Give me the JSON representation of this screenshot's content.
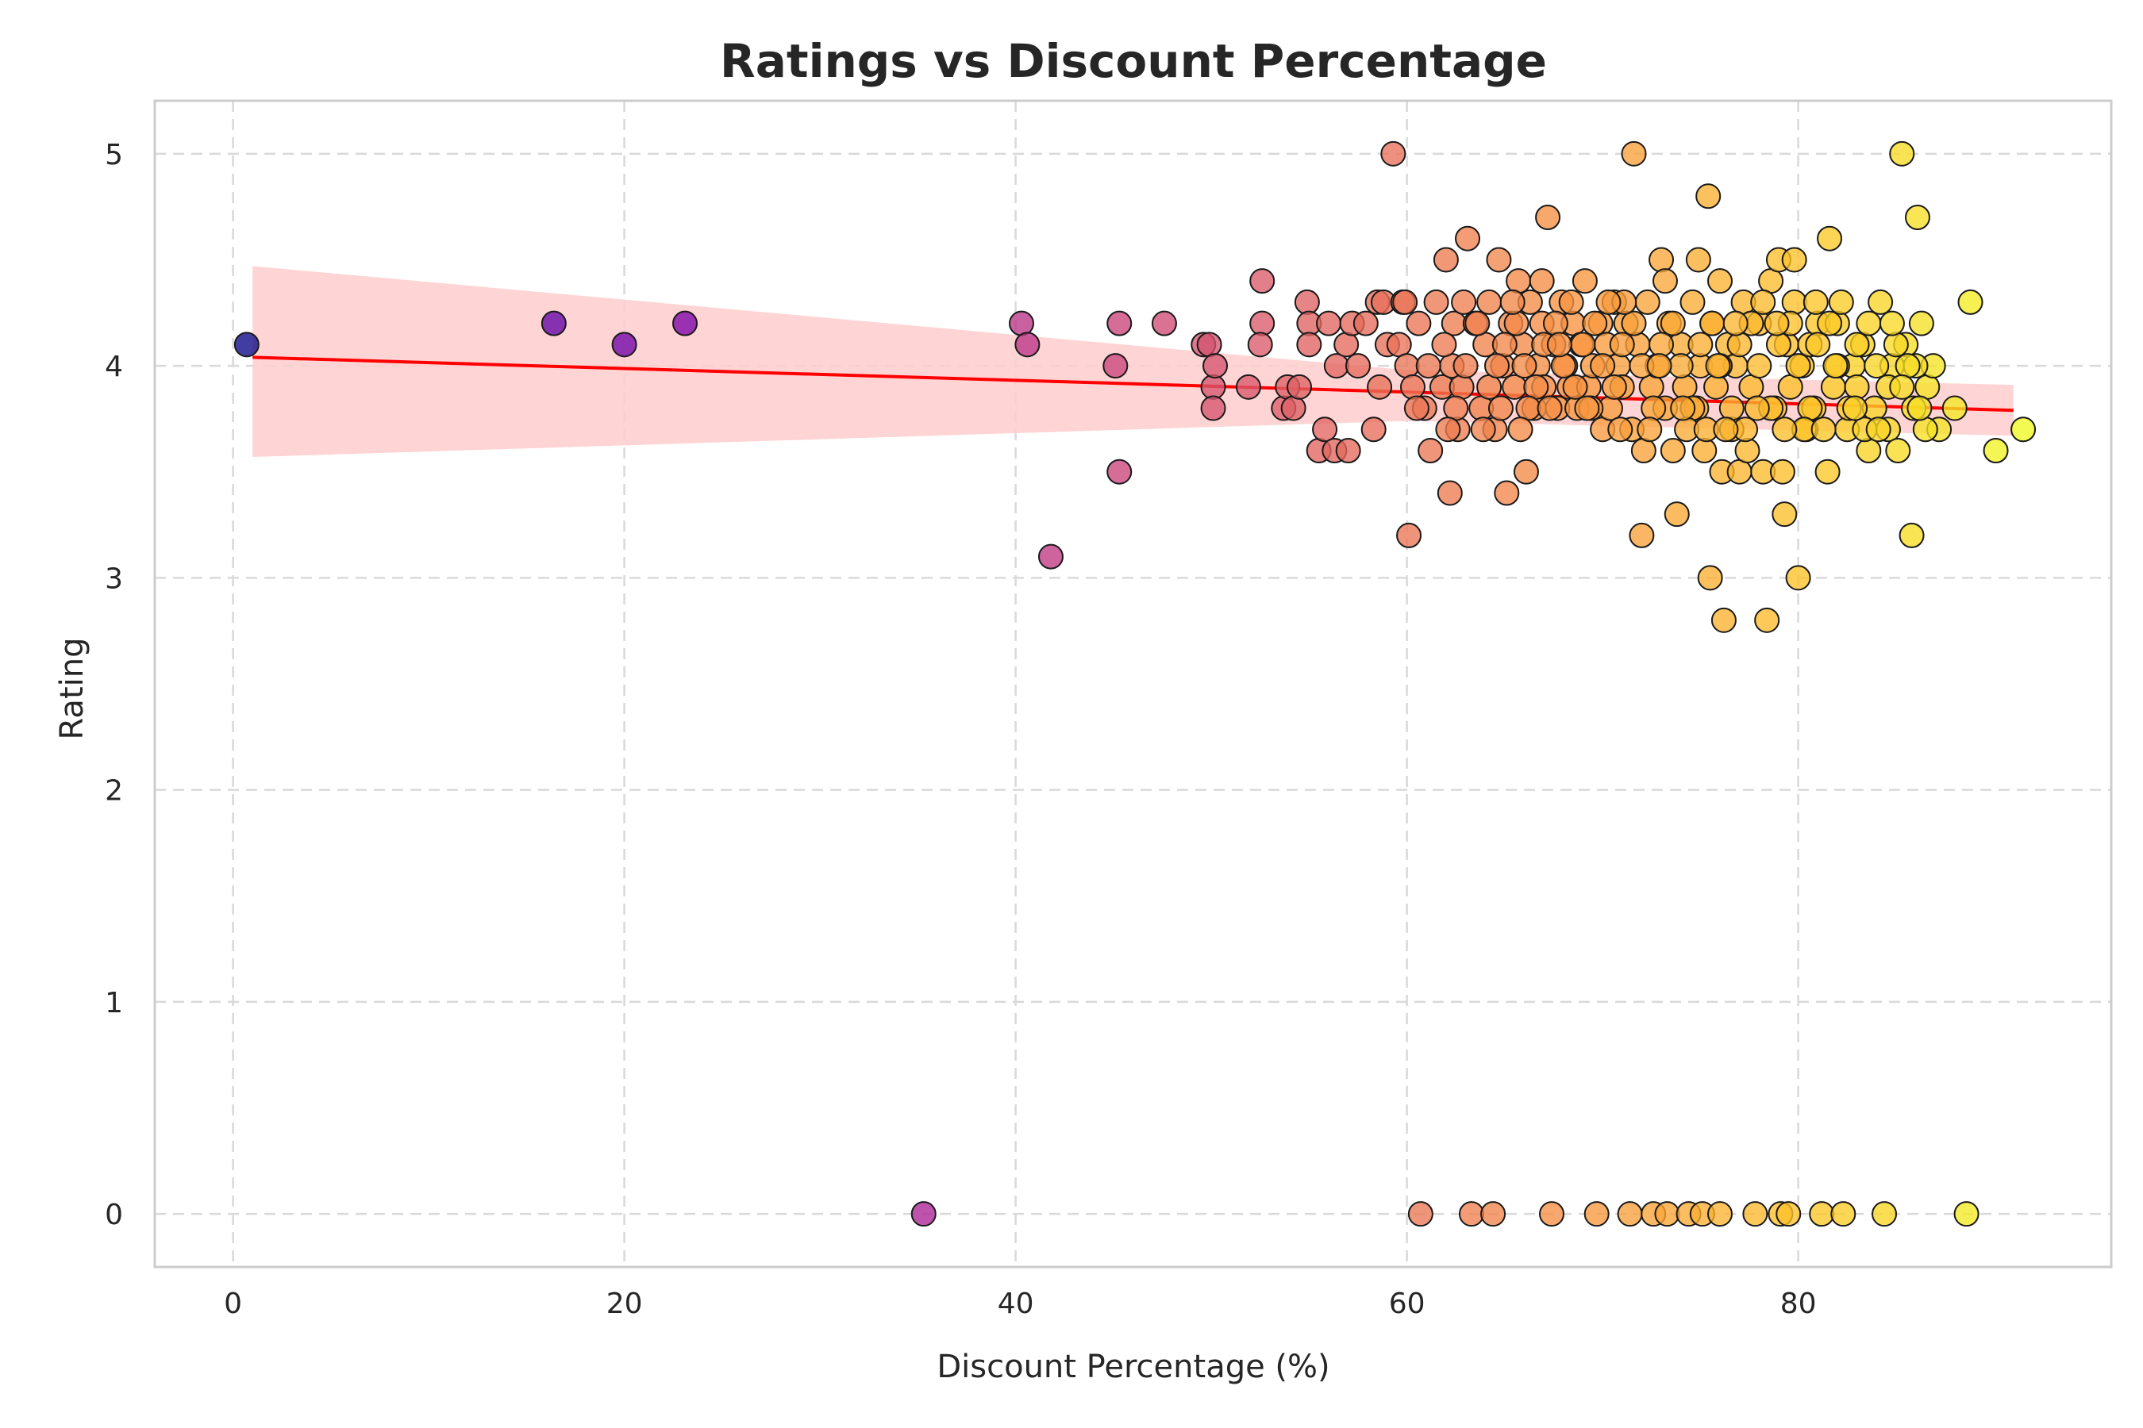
{
  "chart_data": {
    "type": "scatter",
    "title": "Ratings vs Discount Percentage",
    "xlabel": "Discount Percentage (%)",
    "ylabel": "Rating",
    "xlim": [
      -4,
      96
    ],
    "ylim": [
      -0.25,
      5.25
    ],
    "xticks": [
      0,
      20,
      40,
      60,
      80
    ],
    "yticks": [
      0,
      1,
      2,
      3,
      4,
      5
    ],
    "grid": true,
    "colormap": "plasma",
    "color_by": "x",
    "regression": {
      "color": "#ff0000",
      "ci_color": "#ffcccc",
      "line": [
        [
          1,
          4.04
        ],
        [
          91,
          3.79
        ]
      ],
      "ci_upper": [
        [
          1,
          4.47
        ],
        [
          60,
          3.98
        ],
        [
          91,
          3.91
        ]
      ],
      "ci_lower": [
        [
          1,
          3.57
        ],
        [
          60,
          3.74
        ],
        [
          91,
          3.67
        ]
      ]
    },
    "points": [
      [
        0.7,
        4.1
      ],
      [
        16.4,
        4.2
      ],
      [
        20,
        4.1
      ],
      [
        23.1,
        4.2
      ],
      [
        35.3,
        0
      ],
      [
        40.3,
        4.2
      ],
      [
        40.6,
        4.1
      ],
      [
        41.8,
        3.1
      ],
      [
        45.1,
        4.0
      ],
      [
        45.3,
        3.5
      ],
      [
        45.3,
        4.2
      ],
      [
        47.6,
        4.2
      ],
      [
        49.6,
        4.1
      ],
      [
        49.9,
        4.1
      ],
      [
        50.1,
        3.9
      ],
      [
        50.2,
        4.0
      ],
      [
        50.1,
        3.8
      ],
      [
        51.9,
        3.9
      ],
      [
        52.6,
        4.4
      ],
      [
        52.6,
        4.2
      ],
      [
        52.5,
        4.1
      ],
      [
        53.7,
        3.8
      ],
      [
        53.9,
        3.9
      ],
      [
        54.2,
        3.8
      ],
      [
        54.5,
        3.9
      ],
      [
        54.9,
        4.3
      ],
      [
        55.0,
        4.2
      ],
      [
        55.0,
        4.1
      ],
      [
        55.5,
        3.6
      ],
      [
        55.8,
        3.7
      ],
      [
        56.0,
        4.2
      ],
      [
        56.3,
        3.6
      ],
      [
        56.4,
        4.0
      ],
      [
        56.9,
        4.1
      ],
      [
        57.0,
        3.6
      ],
      [
        57.2,
        4.2
      ],
      [
        57.5,
        4.0
      ],
      [
        57.9,
        4.2
      ],
      [
        58.3,
        3.7
      ],
      [
        58.5,
        4.3
      ],
      [
        58.6,
        3.9
      ],
      [
        58.8,
        4.3
      ],
      [
        59.0,
        4.1
      ],
      [
        59.3,
        5.0
      ],
      [
        59.6,
        4.1
      ],
      [
        59.8,
        4.3
      ],
      [
        60.0,
        4.0
      ],
      [
        60.1,
        3.2
      ],
      [
        60.3,
        3.9
      ],
      [
        60.6,
        4.2
      ],
      [
        60.7,
        0
      ],
      [
        60.9,
        3.8
      ],
      [
        61.2,
        3.6
      ],
      [
        61.5,
        4.3
      ],
      [
        61.8,
        3.9
      ],
      [
        62.0,
        4.5
      ],
      [
        62.2,
        3.4
      ],
      [
        62.3,
        4.0
      ],
      [
        62.4,
        4.2
      ],
      [
        62.6,
        3.7
      ],
      [
        62.8,
        3.9
      ],
      [
        63.1,
        4.6
      ],
      [
        63.3,
        0
      ],
      [
        63.5,
        4.2
      ],
      [
        63.8,
        3.8
      ],
      [
        64.0,
        4.1
      ],
      [
        64.2,
        4.3
      ],
      [
        64.4,
        0
      ],
      [
        64.5,
        3.7
      ],
      [
        64.7,
        4.5
      ],
      [
        64.9,
        4.0
      ],
      [
        65.1,
        3.4
      ],
      [
        65.3,
        4.2
      ],
      [
        65.5,
        3.9
      ],
      [
        65.7,
        4.4
      ],
      [
        65.9,
        4.1
      ],
      [
        66.1,
        3.5
      ],
      [
        66.3,
        4.3
      ],
      [
        66.5,
        3.8
      ],
      [
        66.7,
        4.0
      ],
      [
        66.9,
        4.2
      ],
      [
        67.0,
        3.9
      ],
      [
        67.2,
        4.7
      ],
      [
        67.4,
        0
      ],
      [
        67.5,
        4.1
      ],
      [
        67.7,
        3.8
      ],
      [
        67.9,
        4.3
      ],
      [
        68.1,
        4.0
      ],
      [
        68.3,
        3.9
      ],
      [
        68.5,
        4.2
      ],
      [
        68.7,
        3.8
      ],
      [
        68.9,
        4.1
      ],
      [
        69.1,
        4.4
      ],
      [
        69.3,
        3.9
      ],
      [
        69.5,
        4.0
      ],
      [
        69.7,
        0
      ],
      [
        69.9,
        4.2
      ],
      [
        70.0,
        3.7
      ],
      [
        70.2,
        4.1
      ],
      [
        70.4,
        3.8
      ],
      [
        70.6,
        4.3
      ],
      [
        70.8,
        4.0
      ],
      [
        71.0,
        3.9
      ],
      [
        71.2,
        4.2
      ],
      [
        71.4,
        0
      ],
      [
        71.5,
        3.7
      ],
      [
        71.6,
        5.0
      ],
      [
        71.8,
        4.1
      ],
      [
        72.0,
        3.2
      ],
      [
        72.1,
        3.6
      ],
      [
        72.3,
        4.3
      ],
      [
        72.5,
        3.9
      ],
      [
        72.6,
        0
      ],
      [
        72.8,
        4.0
      ],
      [
        73.0,
        4.5
      ],
      [
        73.2,
        3.8
      ],
      [
        73.3,
        0
      ],
      [
        73.4,
        4.2
      ],
      [
        73.6,
        3.6
      ],
      [
        73.8,
        3.3
      ],
      [
        74.0,
        4.1
      ],
      [
        74.2,
        3.9
      ],
      [
        74.4,
        0
      ],
      [
        74.6,
        4.3
      ],
      [
        74.8,
        3.8
      ],
      [
        75.0,
        4.0
      ],
      [
        75.1,
        0
      ],
      [
        75.2,
        3.6
      ],
      [
        75.4,
        4.8
      ],
      [
        75.5,
        3.0
      ],
      [
        75.6,
        4.2
      ],
      [
        75.8,
        3.9
      ],
      [
        76.0,
        0
      ],
      [
        76.0,
        4.4
      ],
      [
        76.1,
        3.5
      ],
      [
        76.2,
        2.8
      ],
      [
        76.4,
        4.1
      ],
      [
        76.6,
        3.7
      ],
      [
        76.8,
        4.0
      ],
      [
        77.0,
        3.5
      ],
      [
        77.2,
        4.3
      ],
      [
        77.4,
        3.6
      ],
      [
        77.6,
        3.9
      ],
      [
        77.8,
        0
      ],
      [
        78.0,
        4.2
      ],
      [
        78.2,
        3.5
      ],
      [
        78.4,
        2.8
      ],
      [
        78.6,
        4.4
      ],
      [
        78.8,
        3.8
      ],
      [
        79.0,
        4.5
      ],
      [
        79.1,
        0
      ],
      [
        79.2,
        3.5
      ],
      [
        79.3,
        3.3
      ],
      [
        79.4,
        4.1
      ],
      [
        79.5,
        0
      ],
      [
        79.6,
        3.9
      ],
      [
        79.8,
        4.3
      ],
      [
        80.0,
        3.0
      ],
      [
        80.2,
        4.0
      ],
      [
        80.4,
        3.7
      ],
      [
        80.6,
        4.1
      ],
      [
        80.8,
        3.8
      ],
      [
        81.0,
        4.2
      ],
      [
        81.2,
        0
      ],
      [
        81.5,
        3.5
      ],
      [
        81.6,
        4.6
      ],
      [
        81.8,
        3.9
      ],
      [
        82.0,
        4.2
      ],
      [
        82.3,
        0
      ],
      [
        82.5,
        3.7
      ],
      [
        82.8,
        4.0
      ],
      [
        83.0,
        3.9
      ],
      [
        83.3,
        4.1
      ],
      [
        83.6,
        3.6
      ],
      [
        83.9,
        3.8
      ],
      [
        84.2,
        4.3
      ],
      [
        84.4,
        0
      ],
      [
        84.6,
        3.7
      ],
      [
        84.8,
        4.0
      ],
      [
        85.1,
        3.6
      ],
      [
        85.3,
        5.0
      ],
      [
        85.5,
        4.1
      ],
      [
        85.8,
        3.2
      ],
      [
        85.9,
        3.8
      ],
      [
        86.1,
        4.7
      ],
      [
        86.3,
        4.2
      ],
      [
        86.6,
        3.9
      ],
      [
        86.9,
        4.0
      ],
      [
        87.2,
        3.7
      ],
      [
        88.0,
        3.8
      ],
      [
        88.8,
        4.3
      ],
      [
        88.6,
        0
      ],
      [
        90.1,
        3.6
      ],
      [
        91.5,
        3.7
      ],
      [
        63.0,
        4.0
      ],
      [
        64.2,
        3.9
      ],
      [
        65.0,
        4.1
      ],
      [
        66.0,
        4.0
      ],
      [
        67.0,
        4.1
      ],
      [
        68.0,
        4.0
      ],
      [
        69.0,
        4.1
      ],
      [
        70.0,
        4.0
      ],
      [
        71.0,
        4.1
      ],
      [
        72.0,
        4.0
      ],
      [
        73.0,
        4.1
      ],
      [
        74.0,
        4.0
      ],
      [
        75.0,
        4.1
      ],
      [
        76.0,
        4.0
      ],
      [
        77.0,
        4.1
      ],
      [
        78.0,
        4.0
      ],
      [
        79.0,
        4.1
      ],
      [
        80.0,
        4.0
      ],
      [
        81.0,
        4.1
      ],
      [
        82.0,
        4.0
      ],
      [
        83.0,
        4.1
      ],
      [
        84.0,
        4.0
      ],
      [
        85.0,
        4.1
      ],
      [
        86.0,
        4.0
      ],
      [
        62.5,
        3.8
      ],
      [
        63.6,
        4.2
      ],
      [
        64.8,
        3.8
      ],
      [
        65.6,
        4.2
      ],
      [
        66.6,
        3.9
      ],
      [
        67.6,
        4.2
      ],
      [
        68.6,
        3.9
      ],
      [
        69.6,
        4.2
      ],
      [
        70.6,
        3.9
      ],
      [
        71.6,
        4.2
      ],
      [
        72.6,
        3.8
      ],
      [
        73.6,
        4.2
      ],
      [
        74.6,
        3.8
      ],
      [
        75.6,
        4.2
      ],
      [
        76.6,
        3.8
      ],
      [
        77.6,
        4.2
      ],
      [
        78.6,
        3.8
      ],
      [
        79.6,
        4.2
      ],
      [
        80.6,
        3.8
      ],
      [
        81.6,
        4.2
      ],
      [
        82.6,
        3.8
      ],
      [
        83.6,
        4.2
      ],
      [
        84.6,
        3.9
      ],
      [
        85.6,
        4.0
      ],
      [
        62.9,
        4.3
      ],
      [
        64.6,
        4.0
      ],
      [
        66.2,
        3.8
      ],
      [
        67.8,
        4.1
      ],
      [
        69.4,
        3.8
      ],
      [
        71.1,
        4.3
      ],
      [
        72.9,
        4.0
      ],
      [
        74.3,
        3.7
      ],
      [
        75.9,
        4.0
      ],
      [
        77.3,
        3.7
      ],
      [
        78.9,
        4.2
      ],
      [
        80.3,
        3.7
      ],
      [
        81.9,
        4.0
      ],
      [
        83.4,
        3.7
      ],
      [
        85.3,
        3.9
      ],
      [
        86.5,
        3.7
      ],
      [
        68.4,
        4.3
      ],
      [
        70.3,
        4.3
      ],
      [
        73.2,
        4.4
      ],
      [
        74.9,
        4.5
      ],
      [
        76.8,
        4.2
      ],
      [
        78.2,
        4.3
      ],
      [
        79.8,
        4.5
      ],
      [
        80.9,
        4.3
      ],
      [
        82.2,
        4.3
      ],
      [
        84.8,
        4.2
      ],
      [
        66.9,
        4.4
      ],
      [
        65.4,
        4.3
      ],
      [
        61.9,
        4.1
      ],
      [
        61.1,
        4.0
      ],
      [
        60.5,
        3.8
      ],
      [
        59.9,
        4.3
      ],
      [
        62.1,
        3.7
      ],
      [
        63.9,
        3.7
      ],
      [
        65.8,
        3.7
      ],
      [
        67.3,
        3.8
      ],
      [
        69.2,
        3.8
      ],
      [
        70.9,
        3.7
      ],
      [
        72.4,
        3.7
      ],
      [
        74.1,
        3.8
      ],
      [
        75.3,
        3.7
      ],
      [
        76.3,
        3.7
      ],
      [
        77.9,
        3.8
      ],
      [
        79.3,
        3.7
      ],
      [
        81.3,
        3.7
      ],
      [
        82.9,
        3.8
      ],
      [
        84.1,
        3.7
      ],
      [
        86.2,
        3.8
      ]
    ]
  }
}
